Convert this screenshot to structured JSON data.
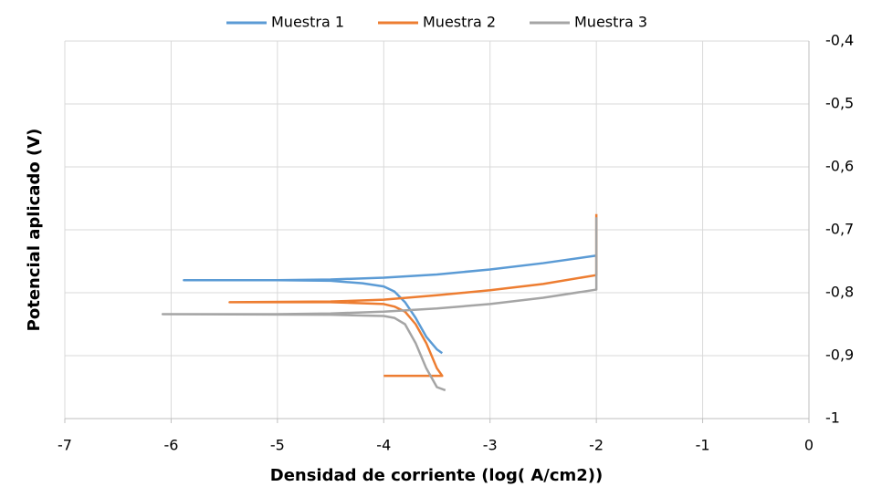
{
  "chart_data": {
    "type": "line",
    "xlabel": "Densidad de corriente (log( A/cm2))",
    "ylabel": "Potencial aplicado (V)",
    "xlim": [
      -7,
      0
    ],
    "xticks": [
      -7,
      -6,
      -5,
      -4,
      -3,
      -2,
      -1,
      0
    ],
    "ylim": [
      -1,
      -0.4
    ],
    "yticks": [
      {
        "value": -1,
        "label": "-1"
      },
      {
        "value": -0.9,
        "label": "-0,9"
      },
      {
        "value": -0.8,
        "label": "-0,8"
      },
      {
        "value": -0.7,
        "label": "-0,7"
      },
      {
        "value": -0.6,
        "label": "-0,6"
      },
      {
        "value": -0.5,
        "label": "-0,5"
      },
      {
        "value": -0.4,
        "label": "-0,4"
      }
    ],
    "y_axis_side": "right",
    "grid": true,
    "legend": "top",
    "series": [
      {
        "name": "Muestra 1",
        "color": "#5b9bd5",
        "x": [
          -3.45,
          -3.5,
          -3.6,
          -3.7,
          -3.8,
          -3.9,
          -4.0,
          -4.2,
          -4.5,
          -5.0,
          -5.88,
          -5.0,
          -4.5,
          -4.0,
          -3.5,
          -3.0,
          -2.5,
          -2.0
        ],
        "values": [
          -0.896,
          -0.89,
          -0.87,
          -0.84,
          -0.815,
          -0.798,
          -0.79,
          -0.785,
          -0.781,
          -0.78,
          -0.78,
          -0.78,
          -0.779,
          -0.776,
          -0.771,
          -0.763,
          -0.753,
          -0.741
        ]
      },
      {
        "name": "Muestra 2",
        "color": "#ed7d31",
        "x": [
          -4.0,
          -3.45,
          -3.5,
          -3.6,
          -3.7,
          -3.8,
          -3.9,
          -4.0,
          -4.5,
          -5.45,
          -4.5,
          -4.0,
          -3.5,
          -3.0,
          -2.5,
          -2.0,
          -2.0
        ],
        "values": [
          -0.932,
          -0.932,
          -0.92,
          -0.88,
          -0.85,
          -0.83,
          -0.822,
          -0.818,
          -0.815,
          -0.815,
          -0.814,
          -0.811,
          -0.804,
          -0.796,
          -0.786,
          -0.772,
          -0.675
        ]
      },
      {
        "name": "Muestra 3",
        "color": "#a5a5a5",
        "x": [
          -3.42,
          -3.5,
          -3.6,
          -3.7,
          -3.8,
          -3.9,
          -4.0,
          -4.5,
          -6.08,
          -5.0,
          -4.5,
          -4.0,
          -3.5,
          -3.0,
          -2.5,
          -2.0,
          -2.0
        ],
        "values": [
          -0.955,
          -0.95,
          -0.92,
          -0.88,
          -0.85,
          -0.84,
          -0.837,
          -0.835,
          -0.834,
          -0.834,
          -0.833,
          -0.83,
          -0.825,
          -0.818,
          -0.808,
          -0.795,
          -0.68
        ]
      }
    ]
  }
}
